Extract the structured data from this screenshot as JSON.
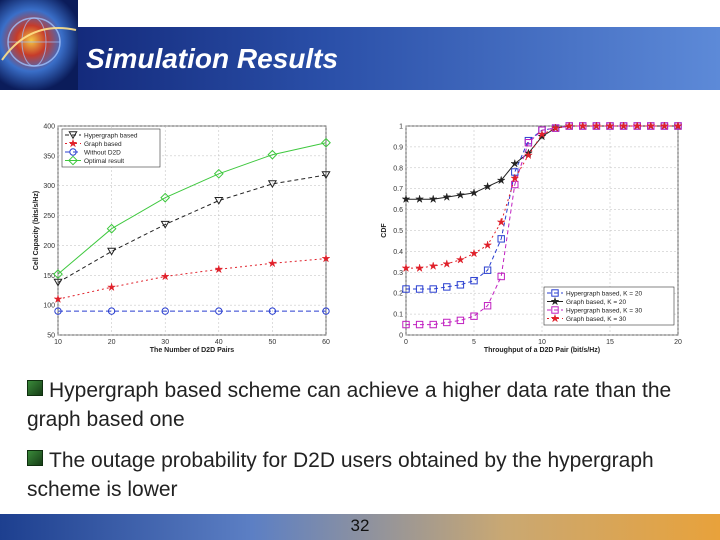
{
  "slide": {
    "title": "Simulation Results",
    "page_number": "32",
    "bullets": [
      "Hypergraph based scheme can achieve a higher data rate than the graph based one",
      "The outage probability for D2D users obtained by the hypergraph scheme is lower"
    ]
  },
  "colors": {
    "black": "#222222",
    "red": "#e0202a",
    "blue": "#2a3fd0",
    "green": "#3ec83e",
    "magenta": "#c020c0"
  },
  "chart_data": [
    {
      "type": "line",
      "xlabel": "The Number of D2D Pairs",
      "ylabel": "Cell Capacity (bits/s/Hz)",
      "xlim": [
        10,
        60
      ],
      "ylim": [
        50,
        400
      ],
      "xticks": [
        "10",
        "20",
        "30",
        "40",
        "50",
        "60"
      ],
      "yticks": [
        "50",
        "100",
        "150",
        "200",
        "250",
        "300",
        "350",
        "400"
      ],
      "grid": true,
      "legend": "top-left",
      "x": [
        10,
        20,
        30,
        40,
        50,
        60
      ],
      "series": [
        {
          "name": "Hypergraph based",
          "color": "#222222",
          "marker": "triangle-down",
          "dash": "4,3",
          "values": [
            138,
            190,
            235,
            275,
            303,
            318
          ]
        },
        {
          "name": "Graph based",
          "color": "#e0202a",
          "marker": "star",
          "dash": "2,3",
          "values": [
            110,
            130,
            148,
            160,
            170,
            178
          ]
        },
        {
          "name": "Without D2D",
          "color": "#2a3fd0",
          "marker": "circle",
          "dash": "5,3",
          "values": [
            90,
            90,
            90,
            90,
            90,
            90
          ]
        },
        {
          "name": "Optimal result",
          "color": "#3ec83e",
          "marker": "diamond",
          "dash": "",
          "values": [
            152,
            228,
            280,
            320,
            352,
            372
          ]
        }
      ]
    },
    {
      "type": "line",
      "xlabel": "Throughput of a D2D Pair (bit/s/Hz)",
      "ylabel": "CDF",
      "xlim": [
        0,
        20
      ],
      "ylim": [
        0,
        1
      ],
      "xticks": [
        "0",
        "5",
        "10",
        "15",
        "20"
      ],
      "yticks": [
        "0",
        "0.1",
        "0.2",
        "0.3",
        "0.4",
        "0.5",
        "0.6",
        "0.7",
        "0.8",
        "0.9",
        "1"
      ],
      "grid": true,
      "legend": "bottom-right",
      "x": [
        0,
        1,
        2,
        3,
        4,
        5,
        6,
        7,
        8,
        9,
        10,
        11,
        12,
        13,
        14,
        15,
        16,
        17,
        18,
        19,
        20
      ],
      "series": [
        {
          "name": "Hypergraph based, K = 20",
          "color": "#2a3fd0",
          "marker": "square",
          "dash": "4,3",
          "values": [
            0.22,
            0.22,
            0.22,
            0.23,
            0.24,
            0.26,
            0.31,
            0.46,
            0.78,
            0.93,
            0.98,
            0.99,
            1,
            1,
            1,
            1,
            1,
            1,
            1,
            1,
            1
          ]
        },
        {
          "name": "Graph based, K = 20",
          "color": "#222222",
          "marker": "star",
          "dash": "",
          "values": [
            0.65,
            0.65,
            0.65,
            0.66,
            0.67,
            0.68,
            0.71,
            0.74,
            0.82,
            0.87,
            0.95,
            0.99,
            1,
            1,
            1,
            1,
            1,
            1,
            1,
            1,
            1
          ]
        },
        {
          "name": "Hypergraph based, K = 30",
          "color": "#c020c0",
          "marker": "square",
          "dash": "4,3",
          "values": [
            0.05,
            0.05,
            0.05,
            0.06,
            0.07,
            0.09,
            0.14,
            0.28,
            0.72,
            0.92,
            0.98,
            0.99,
            1,
            1,
            1,
            1,
            1,
            1,
            1,
            1,
            1
          ]
        },
        {
          "name": "Graph based, K = 30",
          "color": "#e0202a",
          "marker": "star",
          "dash": "2,3",
          "values": [
            0.32,
            0.32,
            0.33,
            0.34,
            0.36,
            0.39,
            0.43,
            0.54,
            0.75,
            0.86,
            0.96,
            0.99,
            1,
            1,
            1,
            1,
            1,
            1,
            1,
            1,
            1
          ]
        }
      ]
    }
  ]
}
